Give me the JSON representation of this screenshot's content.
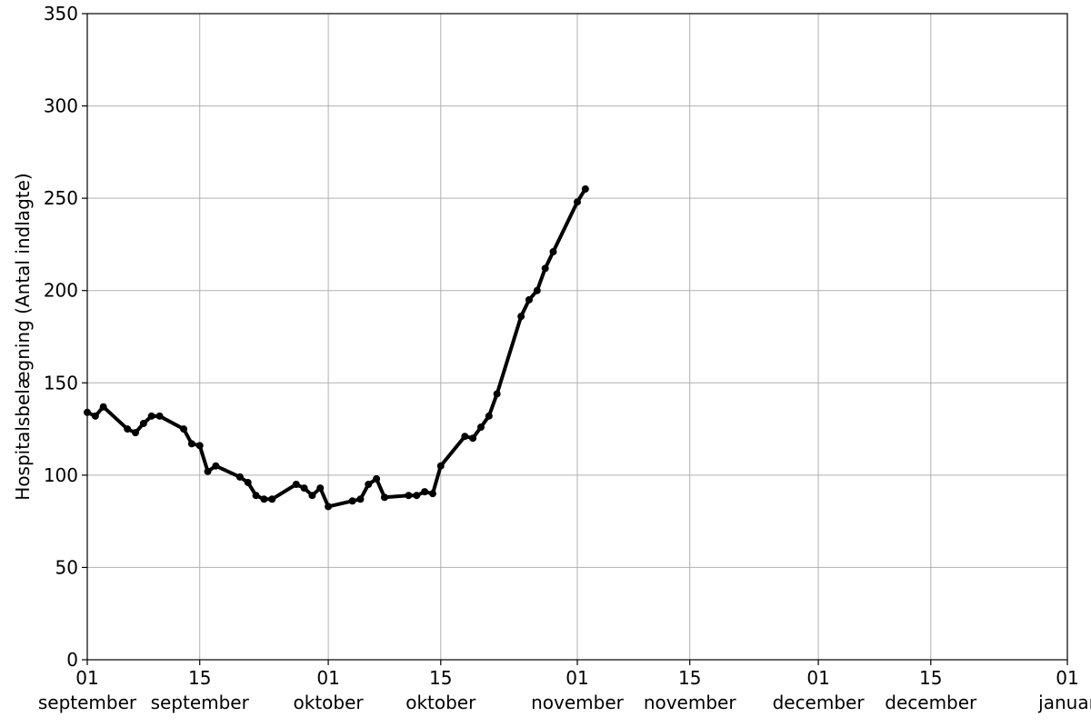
{
  "chart_data": {
    "type": "line",
    "title": "",
    "xlabel": "",
    "ylabel": "Hospitalsbelægning (Antal indlagte)",
    "grid": true,
    "xlim": [
      "2020-09-01",
      "2021-01-01"
    ],
    "ylim": [
      0,
      350
    ],
    "y_ticks": [
      0,
      50,
      100,
      150,
      200,
      250,
      300,
      350
    ],
    "x_ticks": [
      {
        "date": "2020-09-01",
        "day": "01",
        "month": "september"
      },
      {
        "date": "2020-09-15",
        "day": "15",
        "month": "september"
      },
      {
        "date": "2020-10-01",
        "day": "01",
        "month": "oktober"
      },
      {
        "date": "2020-10-15",
        "day": "15",
        "month": "oktober"
      },
      {
        "date": "2020-11-01",
        "day": "01",
        "month": "november"
      },
      {
        "date": "2020-11-15",
        "day": "15",
        "month": "november"
      },
      {
        "date": "2020-12-01",
        "day": "01",
        "month": "december"
      },
      {
        "date": "2020-12-15",
        "day": "15",
        "month": "december"
      },
      {
        "date": "2021-01-01",
        "day": "01",
        "month": "januar"
      }
    ],
    "series": [
      {
        "color": "#000000",
        "x": [
          "2020-09-01",
          "2020-09-02",
          "2020-09-03",
          "2020-09-06",
          "2020-09-07",
          "2020-09-08",
          "2020-09-09",
          "2020-09-10",
          "2020-09-13",
          "2020-09-14",
          "2020-09-15",
          "2020-09-16",
          "2020-09-17",
          "2020-09-20",
          "2020-09-21",
          "2020-09-22",
          "2020-09-23",
          "2020-09-24",
          "2020-09-27",
          "2020-09-28",
          "2020-09-29",
          "2020-09-30",
          "2020-10-01",
          "2020-10-04",
          "2020-10-05",
          "2020-10-06",
          "2020-10-07",
          "2020-10-08",
          "2020-10-11",
          "2020-10-12",
          "2020-10-13",
          "2020-10-14",
          "2020-10-15",
          "2020-10-18",
          "2020-10-19",
          "2020-10-20",
          "2020-10-21",
          "2020-10-22",
          "2020-10-25",
          "2020-10-26",
          "2020-10-27",
          "2020-10-28",
          "2020-10-29",
          "2020-11-01",
          "2020-11-02"
        ],
        "y": [
          134,
          132,
          137,
          125,
          123,
          128,
          132,
          132,
          125,
          117,
          116,
          102,
          105,
          99,
          96,
          89,
          87,
          87,
          95,
          93,
          89,
          93,
          83,
          86,
          87,
          95,
          98,
          88,
          89,
          89,
          91,
          90,
          105,
          121,
          120,
          126,
          132,
          144,
          186,
          195,
          200,
          212,
          221,
          248,
          255
        ]
      }
    ]
  }
}
